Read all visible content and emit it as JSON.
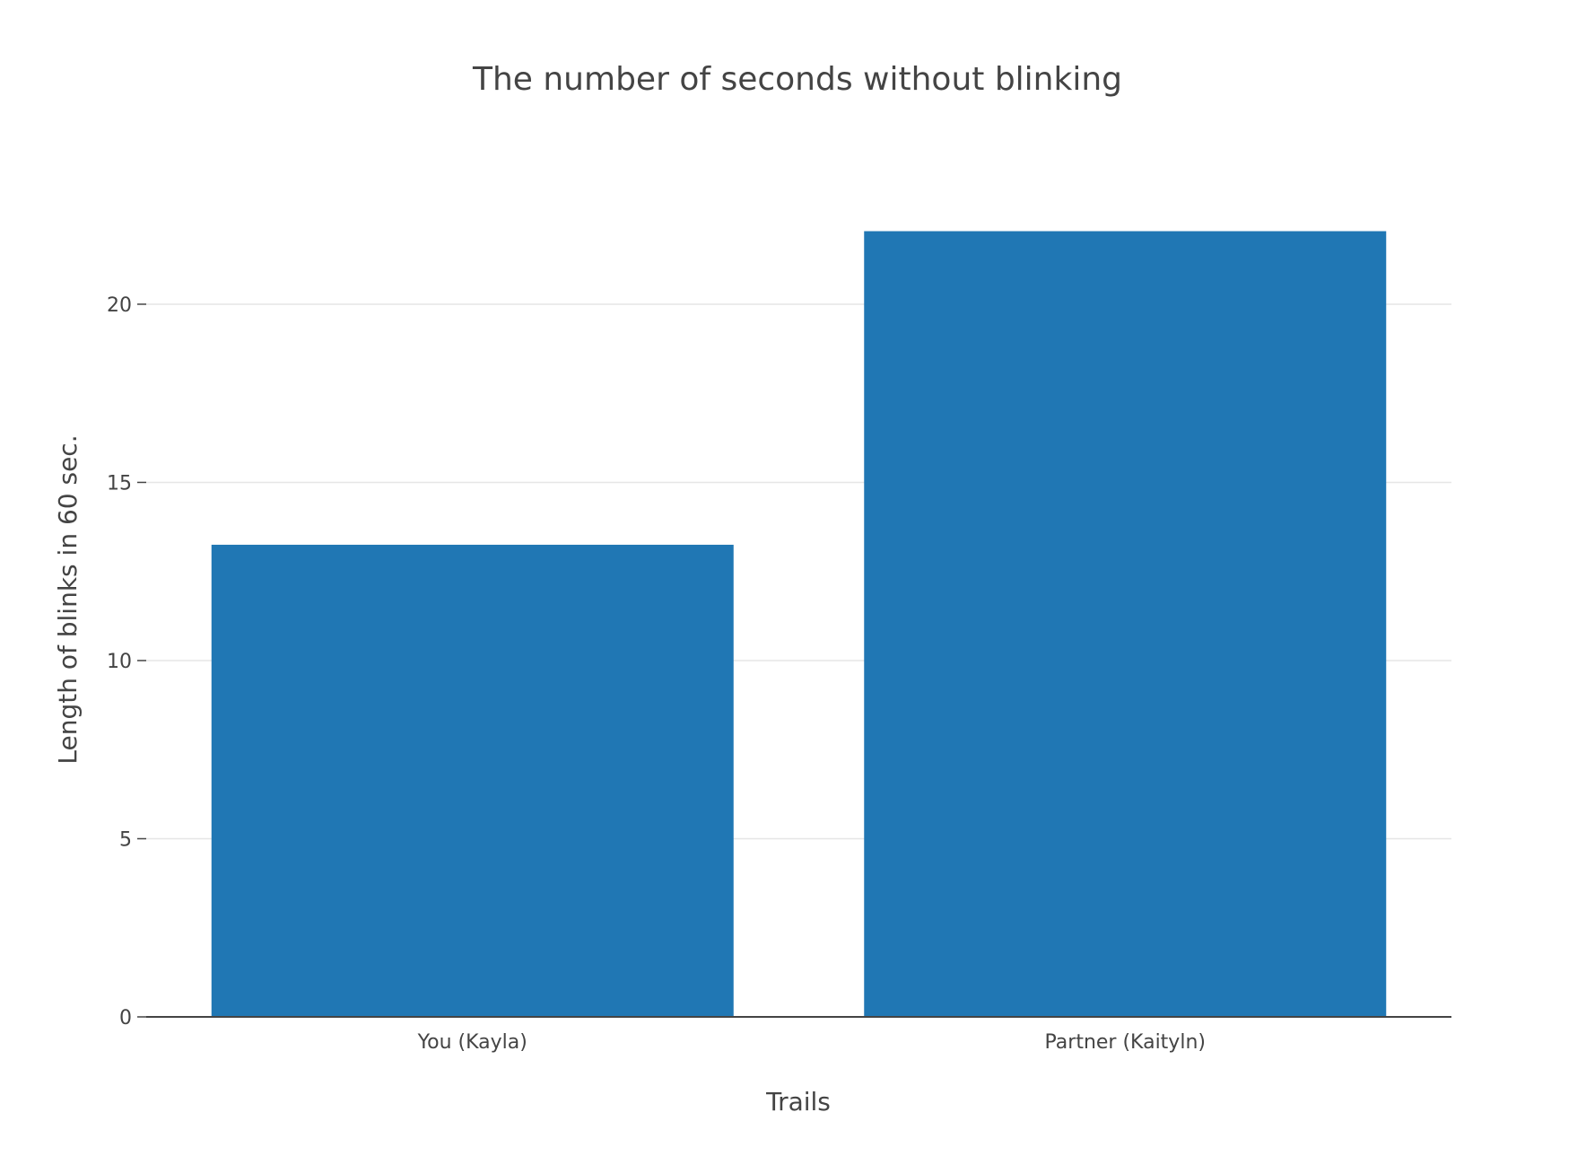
{
  "chart_data": {
    "type": "bar",
    "title": "The number of seconds without blinking",
    "xlabel": "Trails",
    "ylabel": "Length of blinks in 60 sec.",
    "categories": [
      "You (Kayla)",
      "Partner (Kaityln)"
    ],
    "values": [
      13.25,
      22.05
    ],
    "ylim": [
      0,
      23.5
    ],
    "yticks": [
      0,
      5,
      10,
      15,
      20
    ],
    "grid": true,
    "legend": "none",
    "colors": {
      "bar": "#2077b4",
      "grid": "#e6e6e6",
      "axis": "#444444",
      "text": "#444444"
    }
  }
}
